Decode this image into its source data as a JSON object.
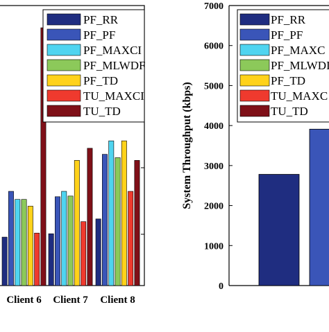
{
  "colors": {
    "PF_RR": "#1f2d80",
    "PF_PF": "#3a55b8",
    "PF_MAXCI": "#4fd4f0",
    "PF_MLWDF": "#8cc95a",
    "PF_TD": "#ffd21a",
    "TU_MAXCI": "#ef3a2e",
    "TU_TD": "#7f1018"
  },
  "chart_data": [
    {
      "type": "bar",
      "categories": [
        "Client 6",
        "Client 7",
        "Client 8"
      ],
      "series": [
        {
          "name": "PF_RR",
          "values": [
            0.72,
            0.77,
            0.99
          ]
        },
        {
          "name": "PF_PF",
          "values": [
            1.4,
            1.32,
            1.95
          ]
        },
        {
          "name": "PF_MAXCI",
          "values": [
            1.28,
            1.4,
            2.15
          ]
        },
        {
          "name": "PF_MLWDF",
          "values": [
            1.28,
            1.33,
            1.9
          ]
        },
        {
          "name": "PF_TD",
          "values": [
            1.18,
            1.86,
            2.15
          ]
        },
        {
          "name": "TU_MAXCI",
          "values": [
            0.78,
            0.95,
            1.4
          ]
        },
        {
          "name": "TU_TD",
          "values": [
            3.83,
            2.04,
            1.86
          ]
        }
      ],
      "legend": {
        "placement": "top-right",
        "labels": [
          "PF_RR",
          "PF_PF",
          "PF_MAXCI",
          "PF_MLWDF",
          "PF_TD",
          "TU_MAXCI",
          "TU_TD"
        ]
      },
      "legend_visible_labels": [
        "PF_RR",
        "PF_PF",
        "PF_MAXCI",
        "PF_MLWDF",
        "PF_TD",
        "TU_MAXCI",
        "TU_TD"
      ],
      "xlabels_visible": [
        "Client 6",
        "Client 7",
        "Client 8"
      ],
      "ylim": [
        0,
        4.16
      ],
      "grid": false
    },
    {
      "type": "bar",
      "categories": [
        "",
        ""
      ],
      "series": [
        {
          "name": "",
          "values": [
            2780,
            3910
          ]
        }
      ],
      "ylabel": "System Throughput (kbps)",
      "ylim": [
        0,
        7000
      ],
      "yticks": [
        "0",
        "1000",
        "2000",
        "3000",
        "4000",
        "5000",
        "6000",
        "7000"
      ],
      "legend": {
        "placement": "top-right",
        "labels": [
          "PF_RR",
          "PF_PF",
          "PF_MAXCI",
          "PF_MLWDF",
          "PF_TD",
          "TU_MAXCI",
          "TU_TD"
        ]
      },
      "legend_visible_labels": [
        "PF_RR",
        "PF_PF",
        "PF_MAXC",
        "PF_MLWDI",
        "PF_TD",
        "TU_MAXC",
        "TU_TD"
      ],
      "bar_colors": [
        "#1f2d80",
        "#3a55b8"
      ],
      "grid": false
    }
  ]
}
